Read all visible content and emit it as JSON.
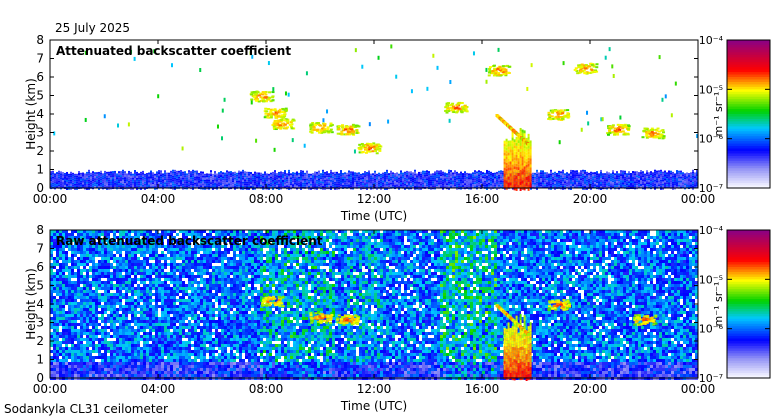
{
  "header": {
    "date": "25 July 2025"
  },
  "footer": {
    "instrument": "Sodankyla CL31 ceilometer"
  },
  "colors": {
    "low": "#d8d8f5",
    "blue": "#0000ff",
    "green": "#00c800",
    "yellow": "#ffff00",
    "red": "#ff0000",
    "max": "#8b0080"
  },
  "chart_data": [
    {
      "type": "heatmap",
      "title": "Attenuated backscatter coefficient",
      "xlabel": "Time (UTC)",
      "ylabel": "Height (km)",
      "xticks": [
        "00:00",
        "04:00",
        "08:00",
        "12:00",
        "16:00",
        "20:00",
        "00:00"
      ],
      "xlim_hours": [
        0,
        24
      ],
      "yticks": [
        "0",
        "1",
        "2",
        "3",
        "4",
        "5",
        "6",
        "7",
        "8"
      ],
      "ylim_km": [
        0,
        8
      ],
      "colorbar": {
        "label": "m⁻¹ sr⁻¹",
        "ticks": [
          "10⁻⁴",
          "10⁻⁵",
          "10⁻⁶",
          "10⁻⁷"
        ],
        "range": [
          1e-07,
          0.0001
        ],
        "scale": "log"
      },
      "features": [
        {
          "name": "boundary layer",
          "t_start": 0,
          "t_end": 24,
          "h_top_km": 0.9,
          "level": "low"
        },
        {
          "name": "cloud",
          "t_center": 7.8,
          "h_center_km": 5.0,
          "level": "high"
        },
        {
          "name": "cloud",
          "t_center": 8.3,
          "h_center_km": 4.1,
          "level": "high"
        },
        {
          "name": "cloud",
          "t_center": 8.6,
          "h_center_km": 3.5,
          "level": "high"
        },
        {
          "name": "cloud",
          "t_center": 10.0,
          "h_center_km": 3.3,
          "level": "high"
        },
        {
          "name": "cloud",
          "t_center": 11.0,
          "h_center_km": 3.2,
          "level": "high"
        },
        {
          "name": "cloud",
          "t_center": 11.8,
          "h_center_km": 2.2,
          "level": "high"
        },
        {
          "name": "cloud",
          "t_center": 15.0,
          "h_center_km": 4.4,
          "level": "high"
        },
        {
          "name": "precipitation",
          "t_start": 16.8,
          "t_end": 17.8,
          "h_top_km": 3.5,
          "level": "very high"
        },
        {
          "name": "cloud",
          "t_center": 16.6,
          "h_center_km": 6.4,
          "level": "high"
        },
        {
          "name": "cloud",
          "t_center": 18.8,
          "h_center_km": 4.0,
          "level": "high"
        },
        {
          "name": "cloud",
          "t_center": 19.8,
          "h_center_km": 6.5,
          "level": "high"
        },
        {
          "name": "cloud",
          "t_center": 21.0,
          "h_center_km": 3.2,
          "level": "high"
        },
        {
          "name": "cloud",
          "t_center": 22.3,
          "h_center_km": 3.0,
          "level": "high"
        }
      ]
    },
    {
      "type": "heatmap",
      "title": "Raw attenuated backscatter coefficient",
      "xlabel": "Time (UTC)",
      "ylabel": "Height (km)",
      "xticks": [
        "00:00",
        "04:00",
        "08:00",
        "12:00",
        "16:00",
        "20:00",
        "00:00"
      ],
      "xlim_hours": [
        0,
        24
      ],
      "yticks": [
        "0",
        "1",
        "2",
        "3",
        "4",
        "5",
        "6",
        "7",
        "8"
      ],
      "ylim_km": [
        0,
        8
      ],
      "colorbar": {
        "label": "m⁻¹ sr⁻¹",
        "ticks": [
          "10⁻⁴",
          "10⁻⁵",
          "10⁻⁶",
          "10⁻⁷"
        ],
        "range": [
          1e-07,
          0.0001
        ],
        "scale": "log"
      },
      "features": [
        {
          "name": "noise",
          "t_start": 0,
          "t_end": 24,
          "h_top_km": 8,
          "level": "low"
        },
        {
          "name": "cloud",
          "t_center": 8.2,
          "h_center_km": 4.2,
          "level": "high"
        },
        {
          "name": "cloud",
          "t_center": 10.0,
          "h_center_km": 3.3,
          "level": "high"
        },
        {
          "name": "cloud",
          "t_center": 11.0,
          "h_center_km": 3.2,
          "level": "high"
        },
        {
          "name": "precipitation",
          "t_start": 16.8,
          "t_end": 17.8,
          "h_top_km": 3.5,
          "level": "very high"
        },
        {
          "name": "cloud",
          "t_center": 18.8,
          "h_center_km": 4.0,
          "level": "high"
        },
        {
          "name": "cloud",
          "t_center": 22.0,
          "h_center_km": 3.2,
          "level": "high"
        }
      ]
    }
  ]
}
